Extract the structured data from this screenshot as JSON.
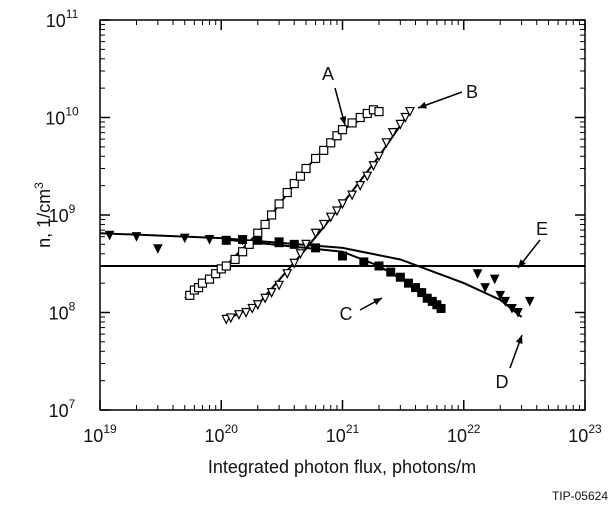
{
  "chart_data": {
    "type": "scatter",
    "title": "",
    "xlabel": "Integrated photon flux, photons/m",
    "ylabel_main": "n, 1/cm",
    "ylabel_sup": "3",
    "xscale": "log",
    "yscale": "log",
    "xlim": [
      1e+19,
      1e+23
    ],
    "ylim": [
      10000000.0,
      100000000000.0
    ],
    "grid": false,
    "x_ticks": [
      {
        "base": "10",
        "exp": "19",
        "value": 1e+19
      },
      {
        "base": "10",
        "exp": "20",
        "value": 1e+20
      },
      {
        "base": "10",
        "exp": "21",
        "value": 1e+21
      },
      {
        "base": "10",
        "exp": "22",
        "value": 1e+22
      },
      {
        "base": "10",
        "exp": "23",
        "value": 1e+23
      }
    ],
    "y_ticks": [
      {
        "base": "10",
        "exp": "7",
        "value": 10000000.0
      },
      {
        "base": "10",
        "exp": "8",
        "value": 100000000.0
      },
      {
        "base": "10",
        "exp": "9",
        "value": 1000000000.0
      },
      {
        "base": "10",
        "exp": "10",
        "value": 10000000000.0
      },
      {
        "base": "10",
        "exp": "11",
        "value": 100000000000.0
      }
    ],
    "series": [
      {
        "label": "A",
        "marker": "open-square",
        "points": [
          [
            5.5e+19,
            150000000.0
          ],
          [
            6e+19,
            170000000.0
          ],
          [
            6.5e+19,
            180000000.0
          ],
          [
            7e+19,
            200000000.0
          ],
          [
            8e+19,
            220000000.0
          ],
          [
            9e+19,
            250000000.0
          ],
          [
            1e+20,
            280000000.0
          ],
          [
            1.1e+20,
            300000000.0
          ],
          [
            1.3e+20,
            350000000.0
          ],
          [
            1.5e+20,
            420000000.0
          ],
          [
            1.7e+20,
            500000000.0
          ],
          [
            2e+20,
            650000000.0
          ],
          [
            2.3e+20,
            800000000.0
          ],
          [
            2.6e+20,
            1000000000.0
          ],
          [
            3e+20,
            1300000000.0
          ],
          [
            3.5e+20,
            1700000000.0
          ],
          [
            4e+20,
            2100000000.0
          ],
          [
            4.5e+20,
            2500000000.0
          ],
          [
            5e+20,
            3000000000.0
          ],
          [
            6e+20,
            3800000000.0
          ],
          [
            7e+20,
            4600000000.0
          ],
          [
            8e+20,
            5500000000.0
          ],
          [
            9e+20,
            6500000000.0
          ],
          [
            1e+21,
            7500000000.0
          ],
          [
            1.2e+21,
            8800000000.0
          ],
          [
            1.4e+21,
            10000000000.0
          ],
          [
            1.6e+21,
            11000000000.0
          ],
          [
            1.8e+21,
            12000000000.0
          ],
          [
            2e+21,
            11500000000.0
          ]
        ],
        "fit": [
          [
            5e+19,
            140000000.0
          ],
          [
            1e+20,
            270000000.0
          ],
          [
            2e+20,
            650000000.0
          ],
          [
            5e+20,
            3000000000.0
          ],
          [
            1e+21,
            7500000000.0
          ],
          [
            2e+21,
            12000000000.0
          ]
        ]
      },
      {
        "label": "B",
        "marker": "open-triangle",
        "points": [
          [
            1.1e+20,
            85000000.0
          ],
          [
            1.2e+20,
            88000000.0
          ],
          [
            1.4e+20,
            95000000.0
          ],
          [
            1.6e+20,
            100000000.0
          ],
          [
            1.8e+20,
            110000000.0
          ],
          [
            2e+20,
            120000000.0
          ],
          [
            2.3e+20,
            140000000.0
          ],
          [
            2.6e+20,
            160000000.0
          ],
          [
            3e+20,
            190000000.0
          ],
          [
            3.5e+20,
            250000000.0
          ],
          [
            4e+20,
            320000000.0
          ],
          [
            4.5e+20,
            400000000.0
          ],
          [
            5e+20,
            500000000.0
          ],
          [
            6e+20,
            650000000.0
          ],
          [
            7e+20,
            800000000.0
          ],
          [
            8e+20,
            950000000.0
          ],
          [
            9e+20,
            1100000000.0
          ],
          [
            1e+21,
            1300000000.0
          ],
          [
            1.2e+21,
            1600000000.0
          ],
          [
            1.4e+21,
            2000000000.0
          ],
          [
            1.6e+21,
            2500000000.0
          ],
          [
            1.8e+21,
            3200000000.0
          ],
          [
            2e+21,
            4000000000.0
          ],
          [
            2.3e+21,
            5500000000.0
          ],
          [
            2.6e+21,
            7000000000.0
          ],
          [
            3e+21,
            8500000000.0
          ],
          [
            3.3e+21,
            10000000000.0
          ],
          [
            3.6e+21,
            11500000000.0
          ]
        ],
        "fit": [
          [
            1.1e+20,
            85000000.0
          ],
          [
            2e+20,
            120000000.0
          ],
          [
            5e+20,
            450000000.0
          ],
          [
            1e+21,
            1300000000.0
          ],
          [
            2e+21,
            4000000000.0
          ],
          [
            3.6e+21,
            11500000000.0
          ]
        ]
      },
      {
        "label": "C",
        "marker": "filled-square",
        "points": [
          [
            1.1e+20,
            550000000.0
          ],
          [
            1.5e+20,
            560000000.0
          ],
          [
            2e+20,
            550000000.0
          ],
          [
            3e+20,
            520000000.0
          ],
          [
            4e+20,
            500000000.0
          ],
          [
            6e+20,
            460000000.0
          ],
          [
            1e+21,
            380000000.0
          ],
          [
            1.5e+21,
            330000000.0
          ],
          [
            2e+21,
            300000000.0
          ],
          [
            2.5e+21,
            260000000.0
          ],
          [
            3e+21,
            230000000.0
          ],
          [
            3.5e+21,
            200000000.0
          ],
          [
            4e+21,
            180000000.0
          ],
          [
            4.5e+21,
            160000000.0
          ],
          [
            5e+21,
            140000000.0
          ],
          [
            5.5e+21,
            130000000.0
          ],
          [
            6e+21,
            120000000.0
          ],
          [
            6.5e+21,
            110000000.0
          ]
        ],
        "fit": [
          [
            1.1e+20,
            560000000.0
          ],
          [
            1e+21,
            420000000.0
          ],
          [
            2e+21,
            300000000.0
          ],
          [
            4e+21,
            180000000.0
          ],
          [
            6.5e+21,
            110000000.0
          ]
        ]
      },
      {
        "label": "D",
        "marker": "filled-triangle",
        "points": [
          [
            1.2e+19,
            620000000.0
          ],
          [
            2e+19,
            600000000.0
          ],
          [
            3e+19,
            450000000.0
          ],
          [
            5e+19,
            580000000.0
          ],
          [
            8e+19,
            560000000.0
          ],
          [
            1.5e+20,
            550000000.0
          ],
          [
            3e+20,
            530000000.0
          ],
          [
            1.3e+22,
            250000000.0
          ],
          [
            1.5e+22,
            180000000.0
          ],
          [
            1.8e+22,
            220000000.0
          ],
          [
            2e+22,
            150000000.0
          ],
          [
            2.2e+22,
            130000000.0
          ],
          [
            2.5e+22,
            110000000.0
          ],
          [
            2.8e+22,
            100000000.0
          ],
          [
            3.5e+22,
            130000000.0
          ]
        ],
        "fit": [
          [
            1e+19,
            650000000.0
          ],
          [
            1e+20,
            580000000.0
          ],
          [
            1e+21,
            460000000.0
          ],
          [
            3e+21,
            350000000.0
          ],
          [
            1e+22,
            200000000.0
          ],
          [
            2e+22,
            135000000.0
          ],
          [
            3e+22,
            90000000.0
          ]
        ]
      },
      {
        "label": "E",
        "marker": "none",
        "points": [],
        "fit": [
          [
            1e+19,
            300000000.0
          ],
          [
            1e+23,
            300000000.0
          ]
        ]
      }
    ],
    "annotations": [
      {
        "id": "A",
        "text": "A"
      },
      {
        "id": "B",
        "text": "B"
      },
      {
        "id": "C",
        "text": "C"
      },
      {
        "id": "D",
        "text": "D"
      },
      {
        "id": "E",
        "text": "E"
      }
    ]
  },
  "figure_id": "TIP-05624"
}
